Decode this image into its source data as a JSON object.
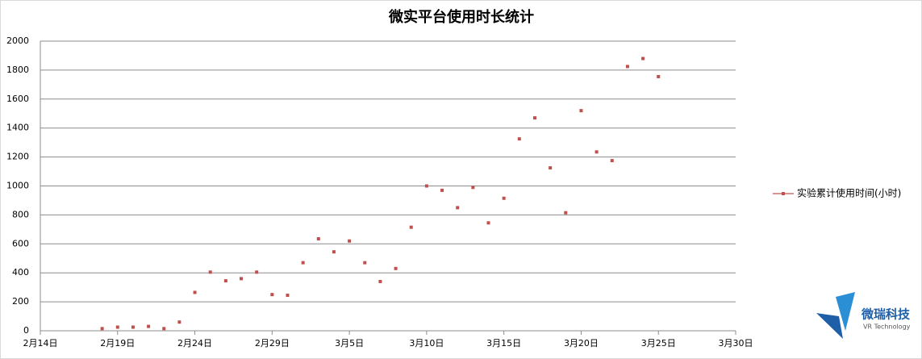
{
  "chart_data": {
    "type": "line",
    "title": "微实平台使用时长统计",
    "x": [
      "2月18日",
      "2月19日",
      "2月20日",
      "2月21日",
      "2月22日",
      "2月23日",
      "2月24日",
      "2月25日",
      "2月26日",
      "2月27日",
      "2月28日",
      "2月29日",
      "3月1日",
      "3月2日",
      "3月3日",
      "3月4日",
      "3月5日",
      "3月6日",
      "3月7日",
      "3月8日",
      "3月9日",
      "3月10日",
      "3月11日",
      "3月12日",
      "3月13日",
      "3月14日",
      "3月15日",
      "3月16日",
      "3月17日",
      "3月18日",
      "3月19日",
      "3月20日",
      "3月21日",
      "3月22日",
      "3月23日",
      "3月24日",
      "3月25日"
    ],
    "series": [
      {
        "name": "实验累计使用时间(小时)",
        "color": "#c0504d",
        "values": [
          15,
          25,
          25,
          30,
          15,
          60,
          265,
          405,
          345,
          360,
          405,
          250,
          245,
          470,
          635,
          545,
          620,
          470,
          340,
          430,
          715,
          1000,
          970,
          850,
          990,
          745,
          915,
          1325,
          1470,
          1125,
          815,
          1520,
          1235,
          1175,
          1825,
          1880,
          1755
        ]
      }
    ],
    "xlim": [
      "2月14日",
      "3月30日"
    ],
    "xticks": [
      "2月14日",
      "2月19日",
      "2月24日",
      "2月29日",
      "3月5日",
      "3月10日",
      "3月15日",
      "3月20日",
      "3月25日",
      "3月30日"
    ],
    "ylim": [
      0,
      2000
    ],
    "yticks": [
      0,
      200,
      400,
      600,
      800,
      1000,
      1200,
      1400,
      1600,
      1800,
      2000
    ],
    "grid": true,
    "legend": "right"
  },
  "logo": {
    "name": "微瑞科技",
    "subtitle": "VR Technology"
  }
}
